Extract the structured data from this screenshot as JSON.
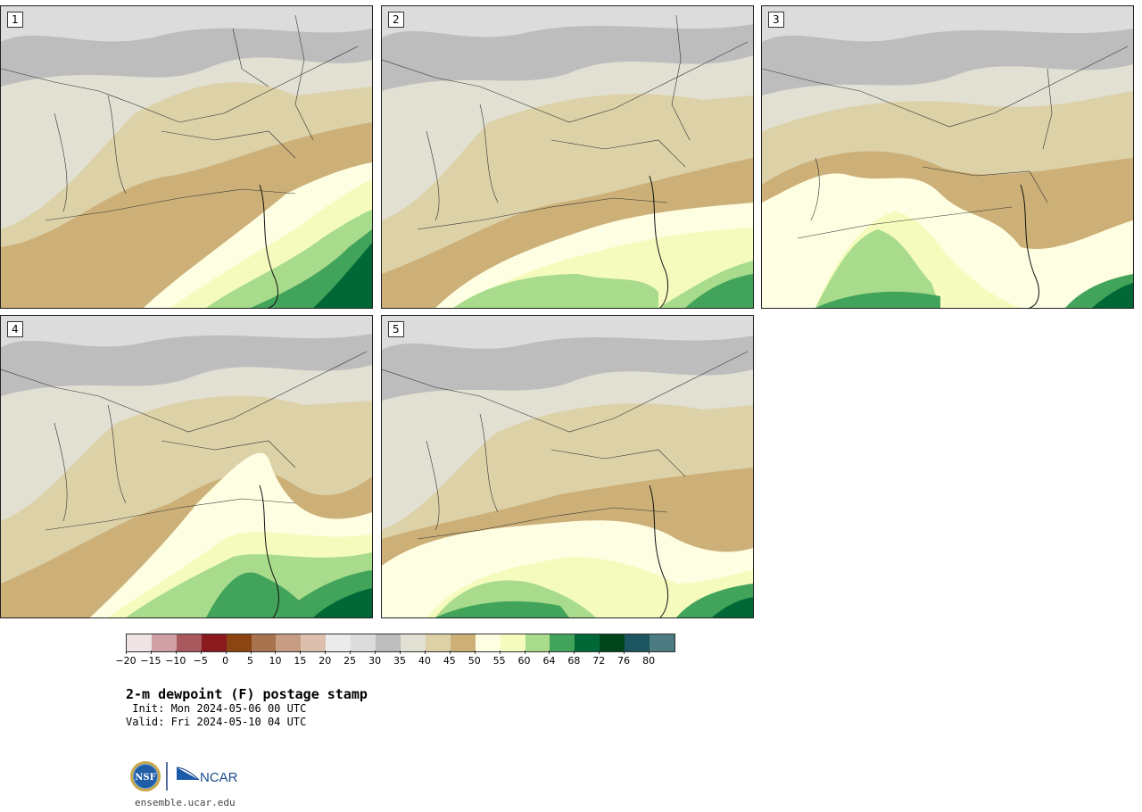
{
  "panels": [
    {
      "label": "1"
    },
    {
      "label": "2"
    },
    {
      "label": "3"
    },
    {
      "label": "4"
    },
    {
      "label": "5"
    }
  ],
  "colorbar": {
    "colors": [
      "#f0e4e4",
      "#cf9fa3",
      "#a9585e",
      "#8b1a1f",
      "#8b4513",
      "#a9734f",
      "#c69d82",
      "#ddbfae",
      "#ebebeb",
      "#dcdcdc",
      "#bdbdbd",
      "#e1e0d3",
      "#ddd1a8",
      "#ccb078",
      "#fefee3",
      "#f5fbbc",
      "#a8dc8c",
      "#42a35a",
      "#006837",
      "#00441b",
      "#1c5560",
      "#4b7b80"
    ],
    "tick_labels": [
      "−20",
      "−15",
      "−10",
      "−5",
      "0",
      "5",
      "10",
      "15",
      "20",
      "25",
      "30",
      "35",
      "40",
      "45",
      "50",
      "55",
      "60",
      "64",
      "68",
      "72",
      "76",
      "80"
    ]
  },
  "title": "2-m dewpoint (F) postage stamp",
  "init": " Init: Mon 2024-05-06 00 UTC",
  "valid": "Valid: Fri 2024-05-10 04 UTC",
  "logos": {
    "nsf": "NSF",
    "ncar": "NCAR"
  },
  "footer_url": "ensemble.ucar.edu"
}
